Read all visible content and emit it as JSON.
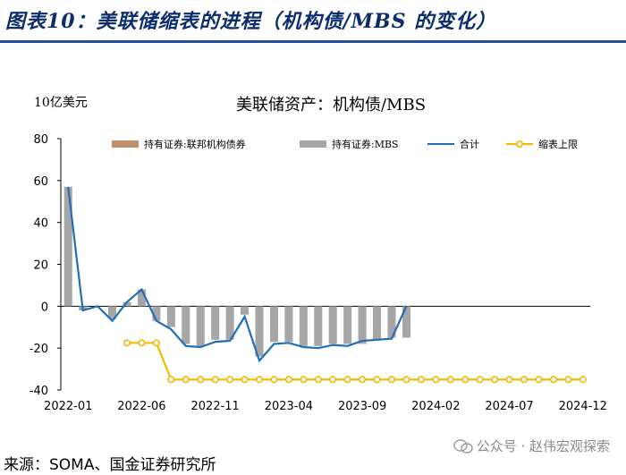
{
  "figure_title": "图表10：美联储缩表的进程（机构债/MBS 的变化）",
  "unit_label": "10亿美元",
  "source": "来源：SOMA、国金证券研究所",
  "watermark": "公众号 · 赵伟宏观探索",
  "colors": {
    "title": "#0b2d6b",
    "rule": "#1f4e9c",
    "agency_debt": "#c0906a",
    "mbs": "#a6a6a6",
    "total": "#1f6fb8",
    "cap": "#f5b800"
  },
  "chart_data": {
    "type": "bar",
    "title": "美联储资产：机构债/MBS",
    "ylabel": "10亿美元",
    "ylim": [
      -40,
      80
    ],
    "yticks": [
      -40,
      -20,
      0,
      20,
      40,
      60,
      80
    ],
    "x": [
      "2022-01",
      "2022-02",
      "2022-03",
      "2022-04",
      "2022-05",
      "2022-06",
      "2022-07",
      "2022-08",
      "2022-09",
      "2022-10",
      "2022-11",
      "2022-12",
      "2023-01",
      "2023-02",
      "2023-03",
      "2023-04",
      "2023-05",
      "2023-06",
      "2023-07",
      "2023-08",
      "2023-09",
      "2023-10",
      "2023-11",
      "2023-12",
      "2024-01",
      "2024-02",
      "2024-03",
      "2024-04",
      "2024-05",
      "2024-06",
      "2024-07",
      "2024-08",
      "2024-09",
      "2024-10",
      "2024-11",
      "2024-12"
    ],
    "xtick_labels": [
      "2022-01",
      "2022-06",
      "2022-11",
      "2023-04",
      "2023-09",
      "2024-02",
      "2024-07",
      "2024-12"
    ],
    "legend": [
      "持有证券:联邦机构债券",
      "持有证券:MBS",
      "合计",
      "缩表上限"
    ],
    "series": [
      {
        "name": "持有证券:联邦机构债券",
        "type": "bar",
        "values": [
          0,
          0,
          0,
          0,
          0,
          0,
          0,
          0,
          0,
          0,
          0,
          0,
          0,
          0,
          0,
          0,
          0,
          0,
          0,
          0,
          0,
          0,
          0,
          0,
          0,
          null,
          null,
          null,
          null,
          null,
          null,
          null,
          null,
          null,
          null,
          null
        ]
      },
      {
        "name": "持有证券:MBS",
        "type": "bar",
        "values": [
          57,
          -2,
          0,
          -6,
          2,
          8,
          -7,
          -10,
          -18,
          -19,
          -16,
          -16,
          -4,
          -24,
          -17,
          -17,
          -19,
          -19,
          -18,
          -18,
          -18,
          -16,
          -15,
          -15,
          0,
          null,
          null,
          null,
          null,
          null,
          null,
          null,
          null,
          null,
          null,
          null
        ]
      },
      {
        "name": "合计",
        "type": "line",
        "values": [
          57,
          -2,
          0,
          -7,
          2,
          8,
          -7,
          -11,
          -19,
          -19.5,
          -17,
          -16.5,
          -5,
          -26,
          -18,
          -17.5,
          -19.5,
          -20,
          -18.5,
          -19,
          -16.5,
          -16,
          -15.5,
          0,
          null,
          null,
          null,
          null,
          null,
          null,
          null,
          null,
          null,
          null,
          null,
          null
        ]
      },
      {
        "name": "缩表上限",
        "type": "line-marker",
        "values": [
          null,
          null,
          null,
          null,
          -17.5,
          -17.5,
          -17.5,
          -35,
          -35,
          -35,
          -35,
          -35,
          -35,
          -35,
          -35,
          -35,
          -35,
          -35,
          -35,
          -35,
          -35,
          -35,
          -35,
          -35,
          -35,
          -35,
          -35,
          -35,
          -35,
          -35,
          -35,
          -35,
          -35,
          -35,
          -35,
          -35
        ]
      }
    ]
  }
}
